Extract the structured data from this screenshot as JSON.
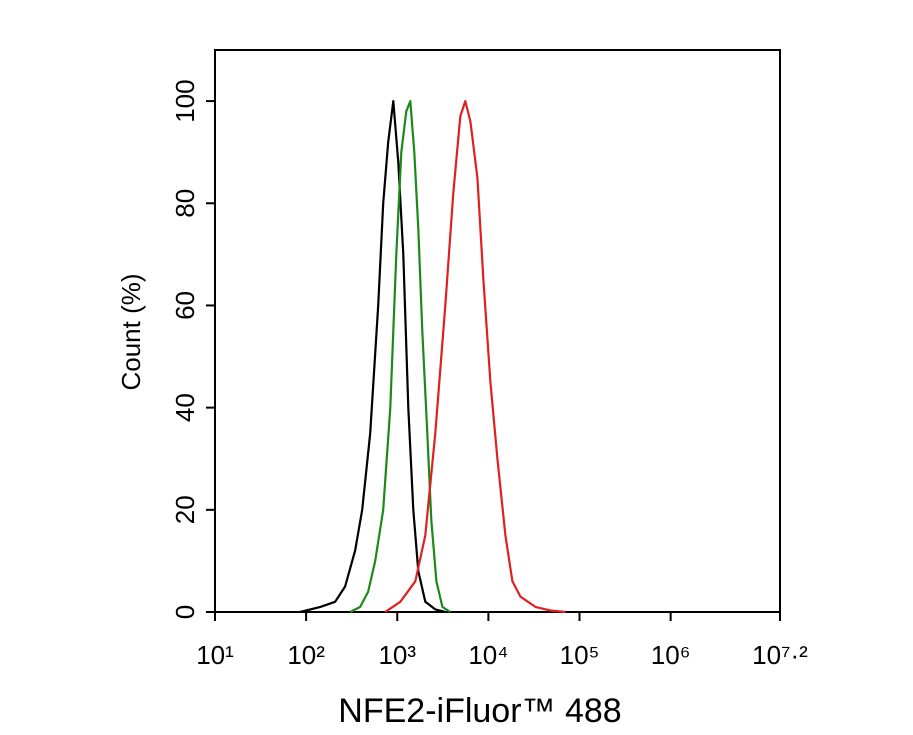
{
  "chart_data": {
    "type": "line",
    "x_label": "NFE2-iFluor™ 488",
    "y_label": "Count  (%)",
    "xlog": true,
    "xlim": [
      10,
      15848931.92
    ],
    "xticks": [
      {
        "value": 10,
        "label": "10¹"
      },
      {
        "value": 100,
        "label": "10²"
      },
      {
        "value": 1000,
        "label": "10³"
      },
      {
        "value": 10000,
        "label": "10⁴"
      },
      {
        "value": 100000,
        "label": "10⁵"
      },
      {
        "value": 1000000,
        "label": "10⁶"
      },
      {
        "value": 15848931.92,
        "label": "10⁷·²"
      }
    ],
    "ylim": [
      0,
      110
    ],
    "yticks": [
      0,
      20,
      40,
      60,
      80,
      100
    ],
    "series": [
      {
        "color": "#000000",
        "x": [
          86,
          143,
          208,
          268,
          345,
          412,
          505,
          618,
          701,
          796,
          904,
          1026,
          1164,
          1321,
          1500,
          1702,
          2032,
          2618,
          3366
        ],
        "values": [
          0,
          1,
          2,
          5,
          12,
          20,
          35,
          60,
          80,
          92,
          100,
          88,
          70,
          40,
          20,
          8,
          2,
          0.5,
          0
        ]
      },
      {
        "color": "#1a8a1a",
        "x": [
          305,
          392,
          480,
          573,
          701,
          838,
          975,
          1107,
          1256,
          1390,
          1538,
          1702,
          1884,
          2138,
          2366,
          2687,
          3125,
          3819
        ],
        "values": [
          0,
          1,
          4,
          10,
          20,
          40,
          70,
          90,
          98,
          100,
          90,
          75,
          55,
          35,
          18,
          6,
          1,
          0
        ]
      },
      {
        "color": "#e02020",
        "x": [
          738,
          1079,
          1578,
          2032,
          2618,
          3366,
          4121,
          4920,
          5585,
          6340,
          7568,
          8810,
          10517,
          12560,
          15380,
          18360,
          22500,
          32810,
          47970,
          70160
        ],
        "values": [
          0,
          2,
          6,
          15,
          35,
          60,
          82,
          97,
          100,
          96,
          85,
          65,
          45,
          30,
          15,
          6,
          3,
          1,
          0.3,
          0
        ]
      }
    ]
  }
}
